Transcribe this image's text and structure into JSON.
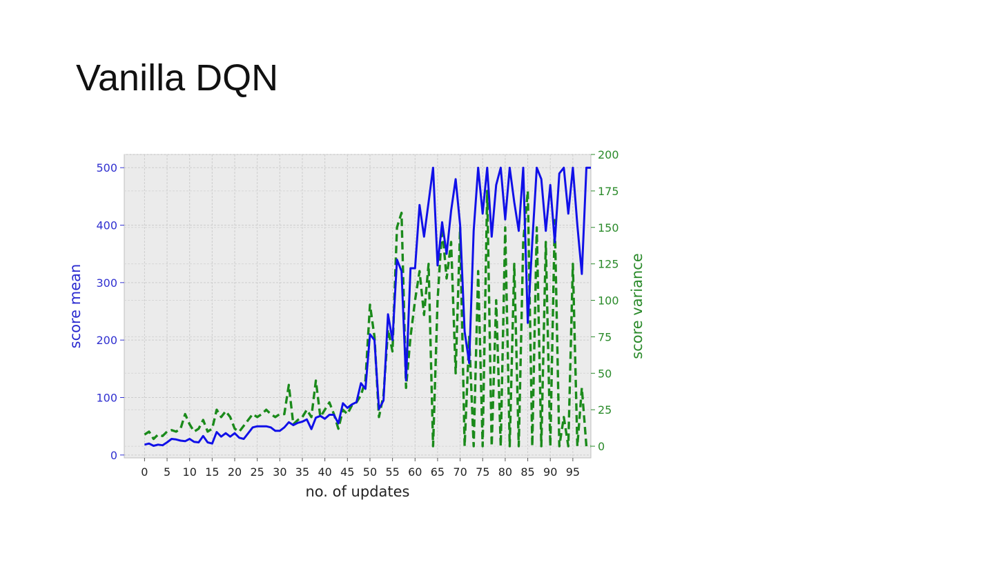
{
  "slide": {
    "title": "Vanilla DQN"
  },
  "chart_data": {
    "type": "line",
    "xlabel": "no. of updates",
    "ylabel_left": "score mean",
    "ylabel_right": "score variance",
    "x_ticks": [
      0,
      5,
      10,
      15,
      20,
      25,
      30,
      35,
      40,
      45,
      50,
      55,
      60,
      65,
      70,
      75,
      80,
      85,
      90,
      95
    ],
    "y_left_ticks": [
      0,
      100,
      200,
      300,
      400,
      500
    ],
    "y_right_ticks": [
      0,
      25,
      50,
      75,
      100,
      125,
      150,
      175,
      200
    ],
    "ylim_left": [
      -5,
      523
    ],
    "ylim_right": [
      -8,
      200
    ],
    "xlim": [
      -4.5,
      99
    ],
    "grid": true,
    "colors": {
      "mean": "#1010e8",
      "variance": "#1a8a1a",
      "plot_bg": "#ebebeb",
      "grid": "#cccccc",
      "left_axis": "#3030d0",
      "right_axis": "#2a8a2a"
    },
    "series": [
      {
        "axis": "left",
        "style": "solid",
        "x": [
          0,
          1,
          2,
          3,
          4,
          5,
          6,
          7,
          8,
          9,
          10,
          11,
          12,
          13,
          14,
          15,
          16,
          17,
          18,
          19,
          20,
          21,
          22,
          23,
          24,
          25,
          26,
          27,
          28,
          29,
          30,
          31,
          32,
          33,
          34,
          35,
          36,
          37,
          38,
          39,
          40,
          41,
          42,
          43,
          44,
          45,
          46,
          47,
          48,
          49,
          50,
          51,
          52,
          53,
          54,
          55,
          56,
          57,
          58,
          59,
          60,
          61,
          62,
          63,
          64,
          65,
          66,
          67,
          68,
          69,
          70,
          71,
          72,
          73,
          74,
          75,
          76,
          77,
          78,
          79,
          80,
          81,
          82,
          83,
          84,
          85,
          86,
          87,
          88,
          89,
          90,
          91,
          92,
          93,
          94,
          95,
          96,
          97,
          98,
          99
        ],
        "values": [
          18,
          20,
          16,
          18,
          17,
          22,
          28,
          27,
          25,
          24,
          28,
          23,
          22,
          33,
          22,
          20,
          40,
          32,
          38,
          32,
          38,
          30,
          28,
          38,
          48,
          50,
          50,
          50,
          48,
          42,
          42,
          48,
          57,
          52,
          56,
          58,
          62,
          45,
          65,
          68,
          63,
          70,
          70,
          55,
          90,
          82,
          88,
          92,
          125,
          115,
          210,
          200,
          80,
          95,
          245,
          200,
          340,
          320,
          130,
          325,
          325,
          435,
          380,
          440,
          500,
          330,
          405,
          350,
          425,
          480,
          400,
          215,
          160,
          390,
          500,
          420,
          500,
          380,
          470,
          500,
          410,
          500,
          440,
          390,
          500,
          230,
          370,
          500,
          480,
          390,
          470,
          370,
          490,
          500,
          420,
          500,
          400,
          315,
          500,
          500
        ]
      },
      {
        "axis": "right",
        "style": "dashed",
        "x": [
          0,
          1,
          2,
          3,
          4,
          5,
          6,
          7,
          8,
          9,
          10,
          11,
          12,
          13,
          14,
          15,
          16,
          17,
          18,
          19,
          20,
          21,
          22,
          23,
          24,
          25,
          26,
          27,
          28,
          29,
          30,
          31,
          32,
          33,
          34,
          35,
          36,
          37,
          38,
          39,
          40,
          41,
          42,
          43,
          44,
          45,
          46,
          47,
          48,
          49,
          50,
          51,
          52,
          53,
          54,
          55,
          56,
          57,
          58,
          59,
          60,
          61,
          62,
          63,
          64,
          65,
          66,
          67,
          68,
          69,
          70,
          71,
          72,
          73,
          74,
          75,
          76,
          77,
          78,
          79,
          80,
          81,
          82,
          83,
          84,
          85,
          86,
          87,
          88,
          89,
          90,
          91,
          92,
          93,
          94,
          95,
          96,
          97,
          98,
          99
        ],
        "values": [
          8,
          10,
          5,
          8,
          7,
          10,
          11,
          10,
          12,
          22,
          15,
          10,
          12,
          18,
          10,
          12,
          25,
          20,
          24,
          20,
          12,
          10,
          14,
          18,
          22,
          20,
          22,
          25,
          22,
          20,
          22,
          22,
          42,
          15,
          18,
          20,
          25,
          20,
          45,
          20,
          25,
          30,
          22,
          12,
          25,
          22,
          28,
          30,
          35,
          45,
          97,
          75,
          20,
          35,
          80,
          65,
          150,
          160,
          40,
          75,
          100,
          120,
          90,
          125,
          0,
          100,
          150,
          115,
          140,
          50,
          150,
          0,
          75,
          0,
          120,
          0,
          175,
          0,
          100,
          0,
          150,
          0,
          125,
          0,
          140,
          175,
          0,
          150,
          0,
          140,
          0,
          155,
          0,
          20,
          0,
          125,
          0,
          40,
          0,
          0
        ]
      }
    ]
  }
}
